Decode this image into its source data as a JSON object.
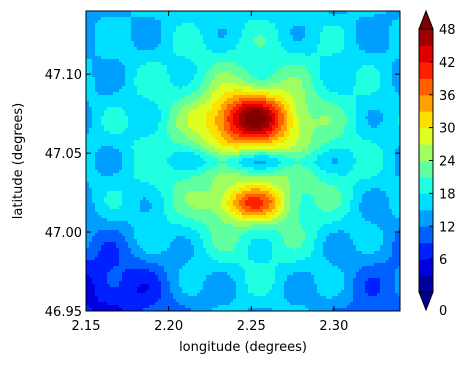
{
  "chart_data": {
    "type": "heatmap",
    "subtype": "filled-contour",
    "title": "",
    "xlabel": "longitude (degrees)",
    "ylabel": "latitude (degrees)",
    "xlim": [
      2.15,
      2.34
    ],
    "ylim": [
      46.95,
      47.14
    ],
    "xticks": [
      "2.15",
      "2.20",
      "2.25",
      "2.30"
    ],
    "yticks": [
      "46.95",
      "47.00",
      "47.05",
      "47.10"
    ],
    "colorbar": {
      "range": [
        0,
        48
      ],
      "ticks": [
        "0",
        "6",
        "12",
        "18",
        "24",
        "30",
        "36",
        "42",
        "48"
      ],
      "extend": "both",
      "colormap": "jet"
    },
    "features": [
      {
        "kind": "peak",
        "lon": 2.25,
        "lat": 47.072,
        "value": 47
      },
      {
        "kind": "secondary-peak",
        "lon": 2.25,
        "lat": 47.018,
        "value": 36
      },
      {
        "kind": "trough-band",
        "lat": 47.045,
        "value": 18
      },
      {
        "kind": "background-min",
        "lon": 2.16,
        "lat": 46.96,
        "value": 5
      }
    ],
    "grid": false,
    "legend": "colorbar-right"
  }
}
